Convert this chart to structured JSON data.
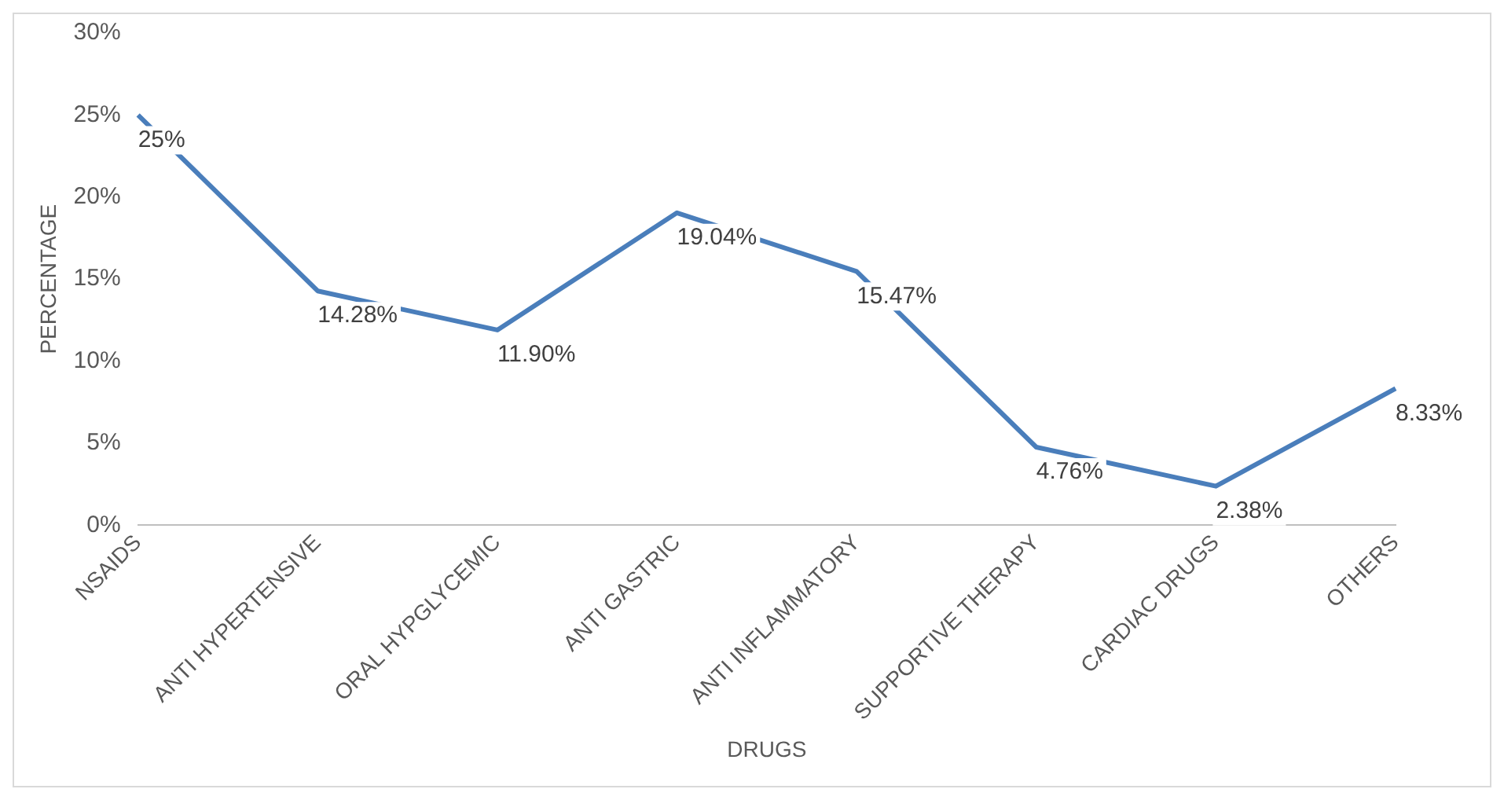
{
  "chart_data": {
    "type": "line",
    "xlabel": "DRUGS",
    "ylabel": "PERCENTAGE",
    "categories": [
      "NSAIDS",
      "ANTI HYPERTENSIVE",
      "ORAL HYPGLYCEMIC",
      "ANTI GASTRIC",
      "ANTI INFLAMMATORY",
      "SUPPORTIVE THERAPY",
      "CARDIAC DRUGS",
      "OTHERS"
    ],
    "series": [
      {
        "color": "#4a7ebb",
        "values": [
          25,
          14.28,
          11.9,
          19.04,
          15.47,
          4.76,
          2.38,
          8.33
        ],
        "value_labels": [
          "25%",
          "14.28%",
          "11.90%",
          "19.04%",
          "15.47%",
          "4.76%",
          "2.38%",
          "8.33%"
        ]
      }
    ],
    "ylim": [
      0,
      30
    ],
    "yticks": [
      {
        "value": 0,
        "label": "0%"
      },
      {
        "value": 5,
        "label": "5%"
      },
      {
        "value": 10,
        "label": "10%"
      },
      {
        "value": 15,
        "label": "15%"
      },
      {
        "value": 20,
        "label": "20%"
      },
      {
        "value": 25,
        "label": "25%"
      },
      {
        "value": 30,
        "label": "30%"
      }
    ],
    "grid": false,
    "legend": false,
    "marker": "none",
    "line_style": "solid"
  }
}
